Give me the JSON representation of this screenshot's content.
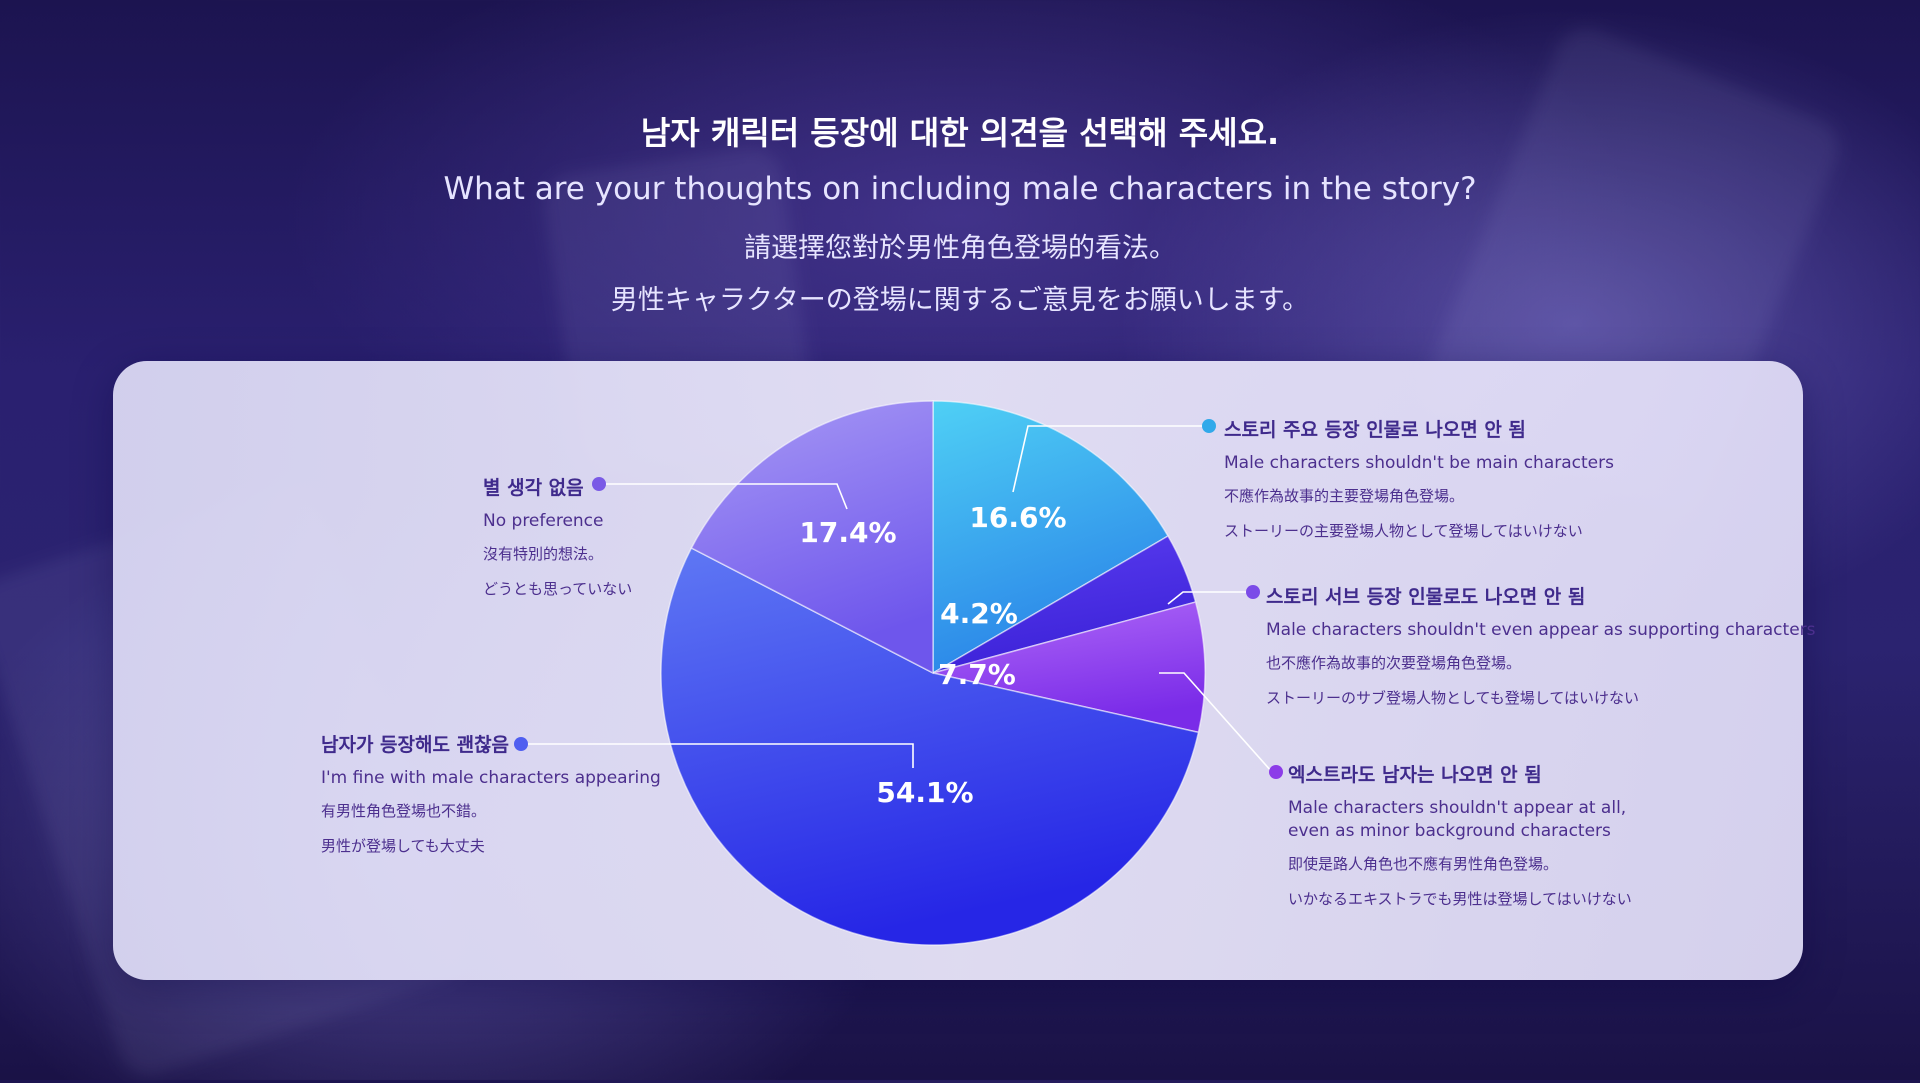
{
  "header": {
    "title_ko": "남자 캐릭터 등장에 대한 의견을 선택해 주세요.",
    "title_en": "What are your thoughts on including male characters in the story?",
    "title_zh": "請選擇您對於男性角色登場的看法。",
    "title_ja": "男性キャラクターの登場に関するご意見をお願いします。"
  },
  "chart_data": {
    "type": "pie",
    "start_angle_deg": 0,
    "direction": "clockwise",
    "slices": [
      {
        "value": 16.6,
        "label": "16.6%",
        "color_start": "#4fd0f5",
        "color_end": "#2a84e8",
        "dot_color": "#31a9ea",
        "legend": {
          "ko": "스토리 주요 등장 인물로 나오면 안 됨",
          "en": "Male characters shouldn't be main characters",
          "zh": "不應作為故事的主要登場角色登場。",
          "ja": "ストーリーの主要登場人物として登場してはいけない"
        }
      },
      {
        "value": 4.2,
        "label": "4.2%",
        "color_start": "#5a3df0",
        "color_end": "#3c22d8",
        "dot_color": "#7b4be8",
        "legend": {
          "ko": "스토리 서브 등장 인물로도 나오면 안 됨",
          "en": "Male characters shouldn't even appear as supporting characters",
          "zh": "也不應作為故事的次要登場角色登場。",
          "ja": "ストーリーのサブ登場人物としても登場してはいけない"
        }
      },
      {
        "value": 7.7,
        "label": "7.7%",
        "color_start": "#b06af8",
        "color_end": "#7a2be8",
        "dot_color": "#8c3ce8",
        "legend": {
          "ko": "엑스트라도 남자는 나오면 안 됨",
          "en": [
            "Male characters shouldn't appear at all,",
            "even as minor background characters"
          ],
          "zh": "即使是路人角色也不應有男性角色登場。",
          "ja": "いかなるエキストラでも男性は登場してはいけない"
        }
      },
      {
        "value": 54.1,
        "label": "54.1%",
        "color_start": "#5f78f4",
        "color_end": "#2626e6",
        "dot_color": "#4f5ef0",
        "legend": {
          "ko": "남자가 등장해도 괜찮음",
          "en": "I'm fine with male characters appearing",
          "zh": "有男性角色登場也不錯。",
          "ja": "男性が登場しても大丈夫"
        }
      },
      {
        "value": 17.4,
        "label": "17.4%",
        "color_start": "#a89af5",
        "color_end": "#6e56ec",
        "dot_color": "#7a5ae6",
        "legend": {
          "ko": "별 생각 없음",
          "en": "No preference",
          "zh": "沒有特別的想法。",
          "ja": "どうとも思っていない"
        }
      }
    ]
  }
}
